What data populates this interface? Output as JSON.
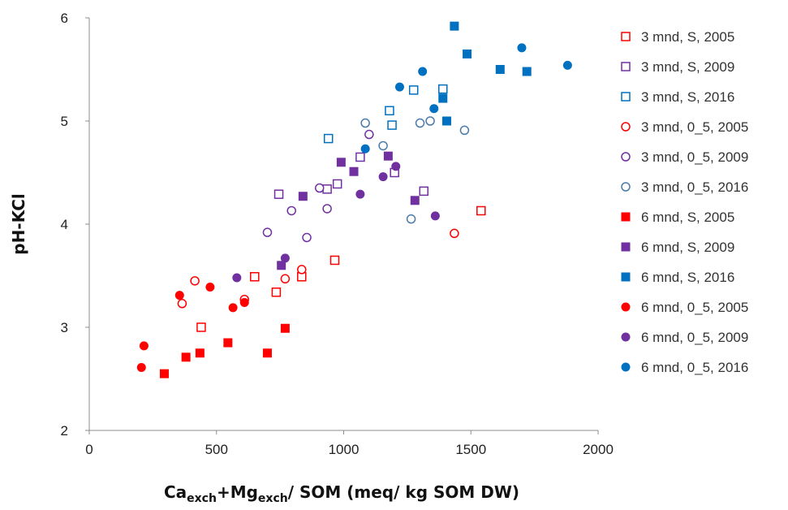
{
  "chart_data": {
    "type": "scatter",
    "xlabel_parts": [
      {
        "text": "Ca",
        "sub": false
      },
      {
        "text": "exch",
        "sub": true
      },
      {
        "text": "+Mg",
        "sub": false
      },
      {
        "text": "exch",
        "sub": true
      },
      {
        "text": "/ SOM (meq/ kg SOM DW)",
        "sub": false
      }
    ],
    "ylabel": "pH-KCl",
    "xlim": [
      0,
      2000
    ],
    "ylim": [
      2,
      6
    ],
    "xticks": [
      "0",
      "500",
      "1000",
      "1500",
      "2000"
    ],
    "yticks": [
      "2",
      "3",
      "4",
      "5",
      "6"
    ],
    "grid": false,
    "legend_position": "right",
    "series": [
      {
        "name": "3 mnd, S, 2005",
        "color": "#ff0000",
        "marker": "square",
        "filled": false,
        "points": [
          [
            440,
            3.0
          ],
          [
            650,
            3.49
          ],
          [
            735,
            3.34
          ],
          [
            835,
            3.49
          ],
          [
            965,
            3.65
          ],
          [
            1540,
            4.13
          ]
        ]
      },
      {
        "name": "3 mnd, S, 2009",
        "color": "#7030a0",
        "marker": "square",
        "filled": false,
        "points": [
          [
            745,
            4.29
          ],
          [
            935,
            4.34
          ],
          [
            975,
            4.39
          ],
          [
            1065,
            4.65
          ],
          [
            1200,
            4.5
          ],
          [
            1315,
            4.32
          ]
        ]
      },
      {
        "name": "3 mnd, S, 2016",
        "color": "#0070c0",
        "marker": "square",
        "filled": false,
        "points": [
          [
            940,
            4.83
          ],
          [
            1180,
            5.1
          ],
          [
            1190,
            4.96
          ],
          [
            1275,
            5.3
          ],
          [
            1390,
            5.31
          ]
        ]
      },
      {
        "name": "3 mnd, 0_5, 2005",
        "color": "#ff0000",
        "marker": "circle",
        "filled": false,
        "points": [
          [
            365,
            3.23
          ],
          [
            415,
            3.45
          ],
          [
            610,
            3.27
          ],
          [
            770,
            3.47
          ],
          [
            835,
            3.56
          ],
          [
            1435,
            3.91
          ]
        ]
      },
      {
        "name": "3 mnd, 0_5, 2009",
        "color": "#7030a0",
        "marker": "circle",
        "filled": false,
        "points": [
          [
            700,
            3.92
          ],
          [
            795,
            4.13
          ],
          [
            855,
            3.87
          ],
          [
            905,
            4.35
          ],
          [
            935,
            4.15
          ],
          [
            1100,
            4.87
          ]
        ]
      },
      {
        "name": "3 mnd, 0_5, 2016",
        "color": "#4a7aa8",
        "marker": "circle",
        "filled": false,
        "points": [
          [
            1085,
            4.98
          ],
          [
            1155,
            4.76
          ],
          [
            1265,
            4.05
          ],
          [
            1300,
            4.98
          ],
          [
            1340,
            5.0
          ],
          [
            1475,
            4.91
          ]
        ]
      },
      {
        "name": "6 mnd, S, 2005",
        "color": "#ff0000",
        "marker": "square",
        "filled": true,
        "points": [
          [
            295,
            2.55
          ],
          [
            380,
            2.71
          ],
          [
            435,
            2.75
          ],
          [
            545,
            2.85
          ],
          [
            700,
            2.75
          ],
          [
            770,
            2.99
          ]
        ]
      },
      {
        "name": "6 mnd, S, 2009",
        "color": "#7030a0",
        "marker": "square",
        "filled": true,
        "points": [
          [
            755,
            3.6
          ],
          [
            840,
            4.27
          ],
          [
            990,
            4.6
          ],
          [
            1040,
            4.51
          ],
          [
            1175,
            4.66
          ],
          [
            1280,
            4.23
          ]
        ]
      },
      {
        "name": "6 mnd, S, 2016",
        "color": "#0070c0",
        "marker": "square",
        "filled": true,
        "points": [
          [
            1390,
            5.22
          ],
          [
            1405,
            5.0
          ],
          [
            1435,
            5.92
          ],
          [
            1485,
            5.65
          ],
          [
            1615,
            5.5
          ],
          [
            1720,
            5.48
          ]
        ]
      },
      {
        "name": "6 mnd, 0_5, 2005",
        "color": "#ff0000",
        "marker": "circle",
        "filled": true,
        "points": [
          [
            205,
            2.61
          ],
          [
            215,
            2.82
          ],
          [
            355,
            3.31
          ],
          [
            475,
            3.39
          ],
          [
            565,
            3.19
          ],
          [
            610,
            3.24
          ]
        ]
      },
      {
        "name": "6 mnd, 0_5, 2009",
        "color": "#7030a0",
        "marker": "circle",
        "filled": true,
        "points": [
          [
            580,
            3.48
          ],
          [
            770,
            3.67
          ],
          [
            1065,
            4.29
          ],
          [
            1155,
            4.46
          ],
          [
            1205,
            4.56
          ],
          [
            1360,
            4.08
          ]
        ]
      },
      {
        "name": "6 mnd, 0_5, 2016",
        "color": "#0070c0",
        "marker": "circle",
        "filled": true,
        "points": [
          [
            1085,
            4.73
          ],
          [
            1220,
            5.33
          ],
          [
            1310,
            5.48
          ],
          [
            1355,
            5.12
          ],
          [
            1700,
            5.71
          ],
          [
            1880,
            5.54
          ]
        ]
      }
    ]
  }
}
